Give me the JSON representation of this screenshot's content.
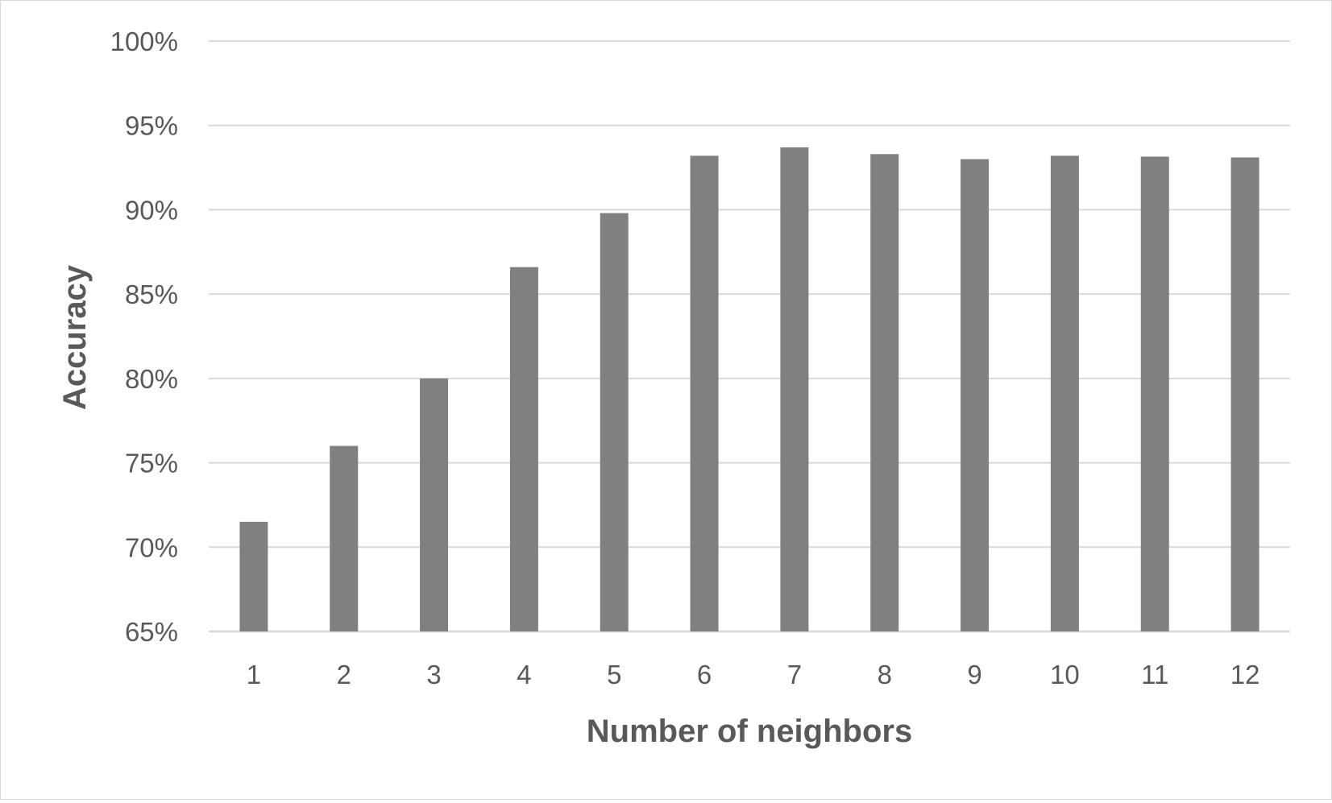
{
  "chart_data": {
    "type": "bar",
    "title": "",
    "xlabel": "Number of neighbors",
    "ylabel": "Accuracy",
    "categories": [
      "1",
      "2",
      "3",
      "4",
      "5",
      "6",
      "7",
      "8",
      "9",
      "10",
      "11",
      "12"
    ],
    "values": [
      71.5,
      76.0,
      80.0,
      86.6,
      89.8,
      93.2,
      93.7,
      93.3,
      93.0,
      93.2,
      93.15,
      93.1
    ],
    "ylim": [
      65,
      100
    ],
    "yticks": [
      65,
      70,
      75,
      80,
      85,
      90,
      95,
      100
    ],
    "ytick_labels": [
      "65%",
      "70%",
      "75%",
      "80%",
      "85%",
      "90%",
      "95%",
      "100%"
    ],
    "grid": true,
    "legend": "none",
    "colors": {
      "bar": "#808080",
      "grid": "#d9d9d9",
      "text": "#595959"
    }
  }
}
